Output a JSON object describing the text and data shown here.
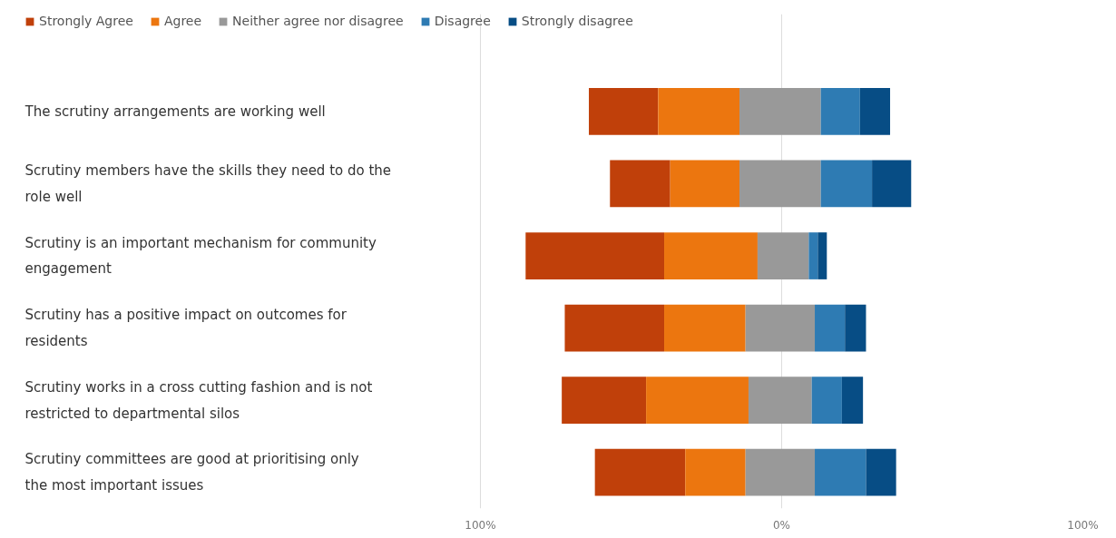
{
  "chart_data": {
    "type": "bar",
    "orientation": "horizontal",
    "categories": [
      "The scrutiny arrangements are working well",
      "Scrutiny members have the skills they need to do the role well",
      "Scrutiny is an important mechanism for community engagement",
      "Scrutiny has a positive impact on outcomes for residents",
      "Scrutiny works in a cross cutting fashion and is not restricted to departmental silos",
      "Scrutiny committees are good at prioritising only the most important issues"
    ],
    "series": [
      {
        "name": "Strongly Agree",
        "color": "#c0400a",
        "base": [
          -64,
          -57,
          -85,
          -72,
          -73,
          -62
        ],
        "values": [
          23,
          20,
          46,
          33,
          28,
          30
        ]
      },
      {
        "name": "Agree",
        "color": "#ec760f",
        "base": [
          -41,
          -37,
          -39,
          -39,
          -45,
          -32
        ],
        "values": [
          27,
          23,
          31,
          27,
          34,
          20
        ]
      },
      {
        "name": "Neither agree nor disagree",
        "color": "#999999",
        "base": [
          -14,
          -14,
          -8,
          -12,
          -11,
          -12
        ],
        "values": [
          27,
          27,
          17,
          23,
          21,
          23
        ]
      },
      {
        "name": "Disagree",
        "color": "#2e7bb3",
        "base": [
          13,
          13,
          9,
          11,
          10,
          11
        ],
        "values": [
          13,
          17,
          3,
          10,
          10,
          17
        ]
      },
      {
        "name": "Strongly disagree",
        "color": "#074d85",
        "base": [
          26,
          30,
          12,
          21,
          20,
          28
        ],
        "values": [
          10,
          13,
          3,
          7,
          7,
          10
        ]
      }
    ],
    "xlim": [
      -100,
      100
    ],
    "xticks": [
      {
        "value": -100,
        "label": "100%"
      },
      {
        "value": 0,
        "label": "0%"
      },
      {
        "value": 100,
        "label": "100%"
      }
    ],
    "grid": "x",
    "legend": "top left"
  }
}
